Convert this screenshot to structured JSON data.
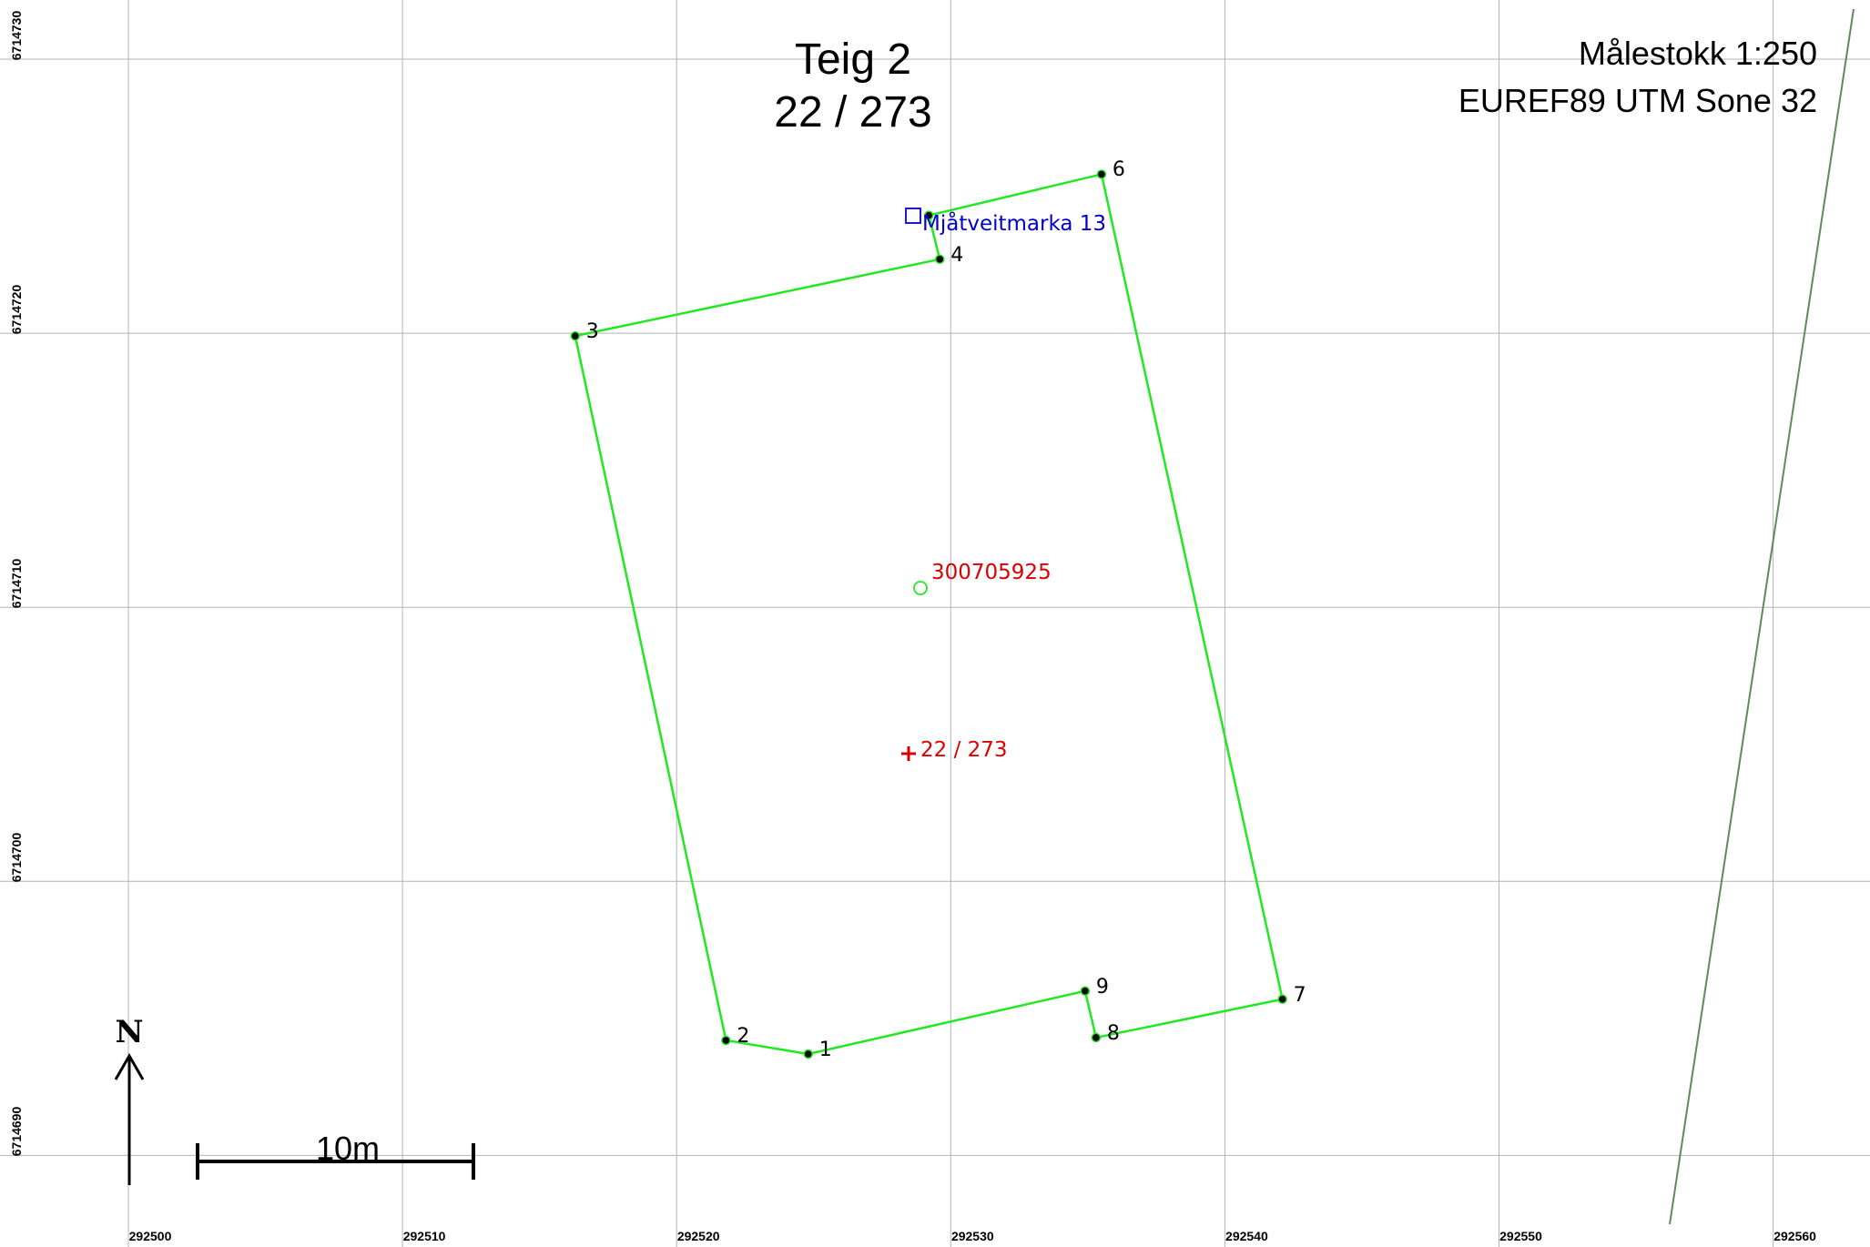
{
  "title": {
    "line1": "Teig 2",
    "line2": "22 / 273"
  },
  "map_info": {
    "scale": "Målestokk 1:250",
    "projection": "EUREF89 UTM Sone 32"
  },
  "x_ticks": [
    "292500",
    "292510",
    "292520",
    "292530",
    "292540",
    "292550",
    "292560"
  ],
  "y_ticks": [
    "6714730",
    "6714720",
    "6714710",
    "6714700",
    "6714690"
  ],
  "boundary_points": [
    {
      "label": "1",
      "x": 292524.8,
      "y": 6714693.7
    },
    {
      "label": "2",
      "x": 292521.8,
      "y": 6714694.2
    },
    {
      "label": "3",
      "x": 292516.3,
      "y": 6714719.9
    },
    {
      "label": "4",
      "x": 292529.6,
      "y": 6714722.7
    },
    {
      "label": "",
      "x": 292529.2,
      "y": 6714724.3
    },
    {
      "label": "6",
      "x": 292535.5,
      "y": 6714725.8
    },
    {
      "label": "7",
      "x": 292542.1,
      "y": 6714695.7
    },
    {
      "label": "8",
      "x": 292535.3,
      "y": 6714694.3
    },
    {
      "label": "9",
      "x": 292534.9,
      "y": 6714696.0
    }
  ],
  "address": {
    "label": "Mjåtveitmarka 13",
    "x": 292528.6,
    "y": 6714724.4
  },
  "building_id": {
    "label": "300705925",
    "x": 292529.1,
    "y": 6714710.7
  },
  "parcel_marker": {
    "label": "22 / 273",
    "x": 292528.7,
    "y": 6714704.2
  },
  "scale_bar": {
    "label": "10m"
  },
  "north_arrow": {
    "label": "N"
  },
  "colors": {
    "boundary": "#22e822",
    "grid": "#b4b4b4",
    "road": "#5f8a5a",
    "red": "#dd0000",
    "blue": "#0000cc"
  }
}
